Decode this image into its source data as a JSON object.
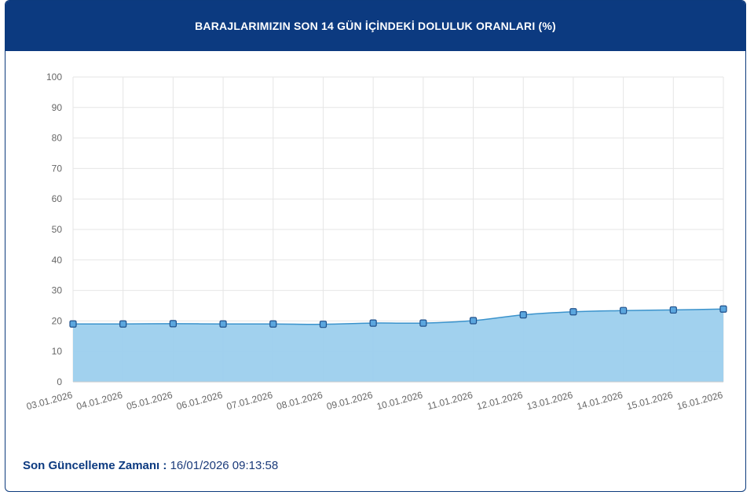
{
  "title": "BARAJLARIMIZIN SON 14 GÜN İÇİNDEKİ DOLULUK ORANLARI (%)",
  "footer": {
    "label": "Son Güncelleme Zamanı :",
    "value": "16/01/2026 09:13:58"
  },
  "colors": {
    "header": "#0c3a80",
    "area_fill": "#9ccfed",
    "line": "#3b93cc",
    "marker_fill": "#5ba6de",
    "marker_stroke": "#1f4f8a"
  },
  "chart_data": {
    "type": "area",
    "categories": [
      "03.01.2026",
      "04.01.2026",
      "05.01.2026",
      "06.01.2026",
      "07.01.2026",
      "08.01.2026",
      "09.01.2026",
      "10.01.2026",
      "11.01.2026",
      "12.01.2026",
      "13.01.2026",
      "14.01.2026",
      "15.01.2026",
      "16.01.2026"
    ],
    "series": [
      {
        "values": [
          19.0,
          19.0,
          19.1,
          19.0,
          19.0,
          18.9,
          19.3,
          19.3,
          20.1,
          22.0,
          23.0,
          23.4,
          23.6,
          23.9
        ]
      }
    ],
    "ylim": [
      0,
      100
    ],
    "yticks": [
      0,
      10,
      20,
      30,
      40,
      50,
      60,
      70,
      80,
      90,
      100
    ],
    "grid": true,
    "xlabel": "",
    "ylabel": ""
  }
}
